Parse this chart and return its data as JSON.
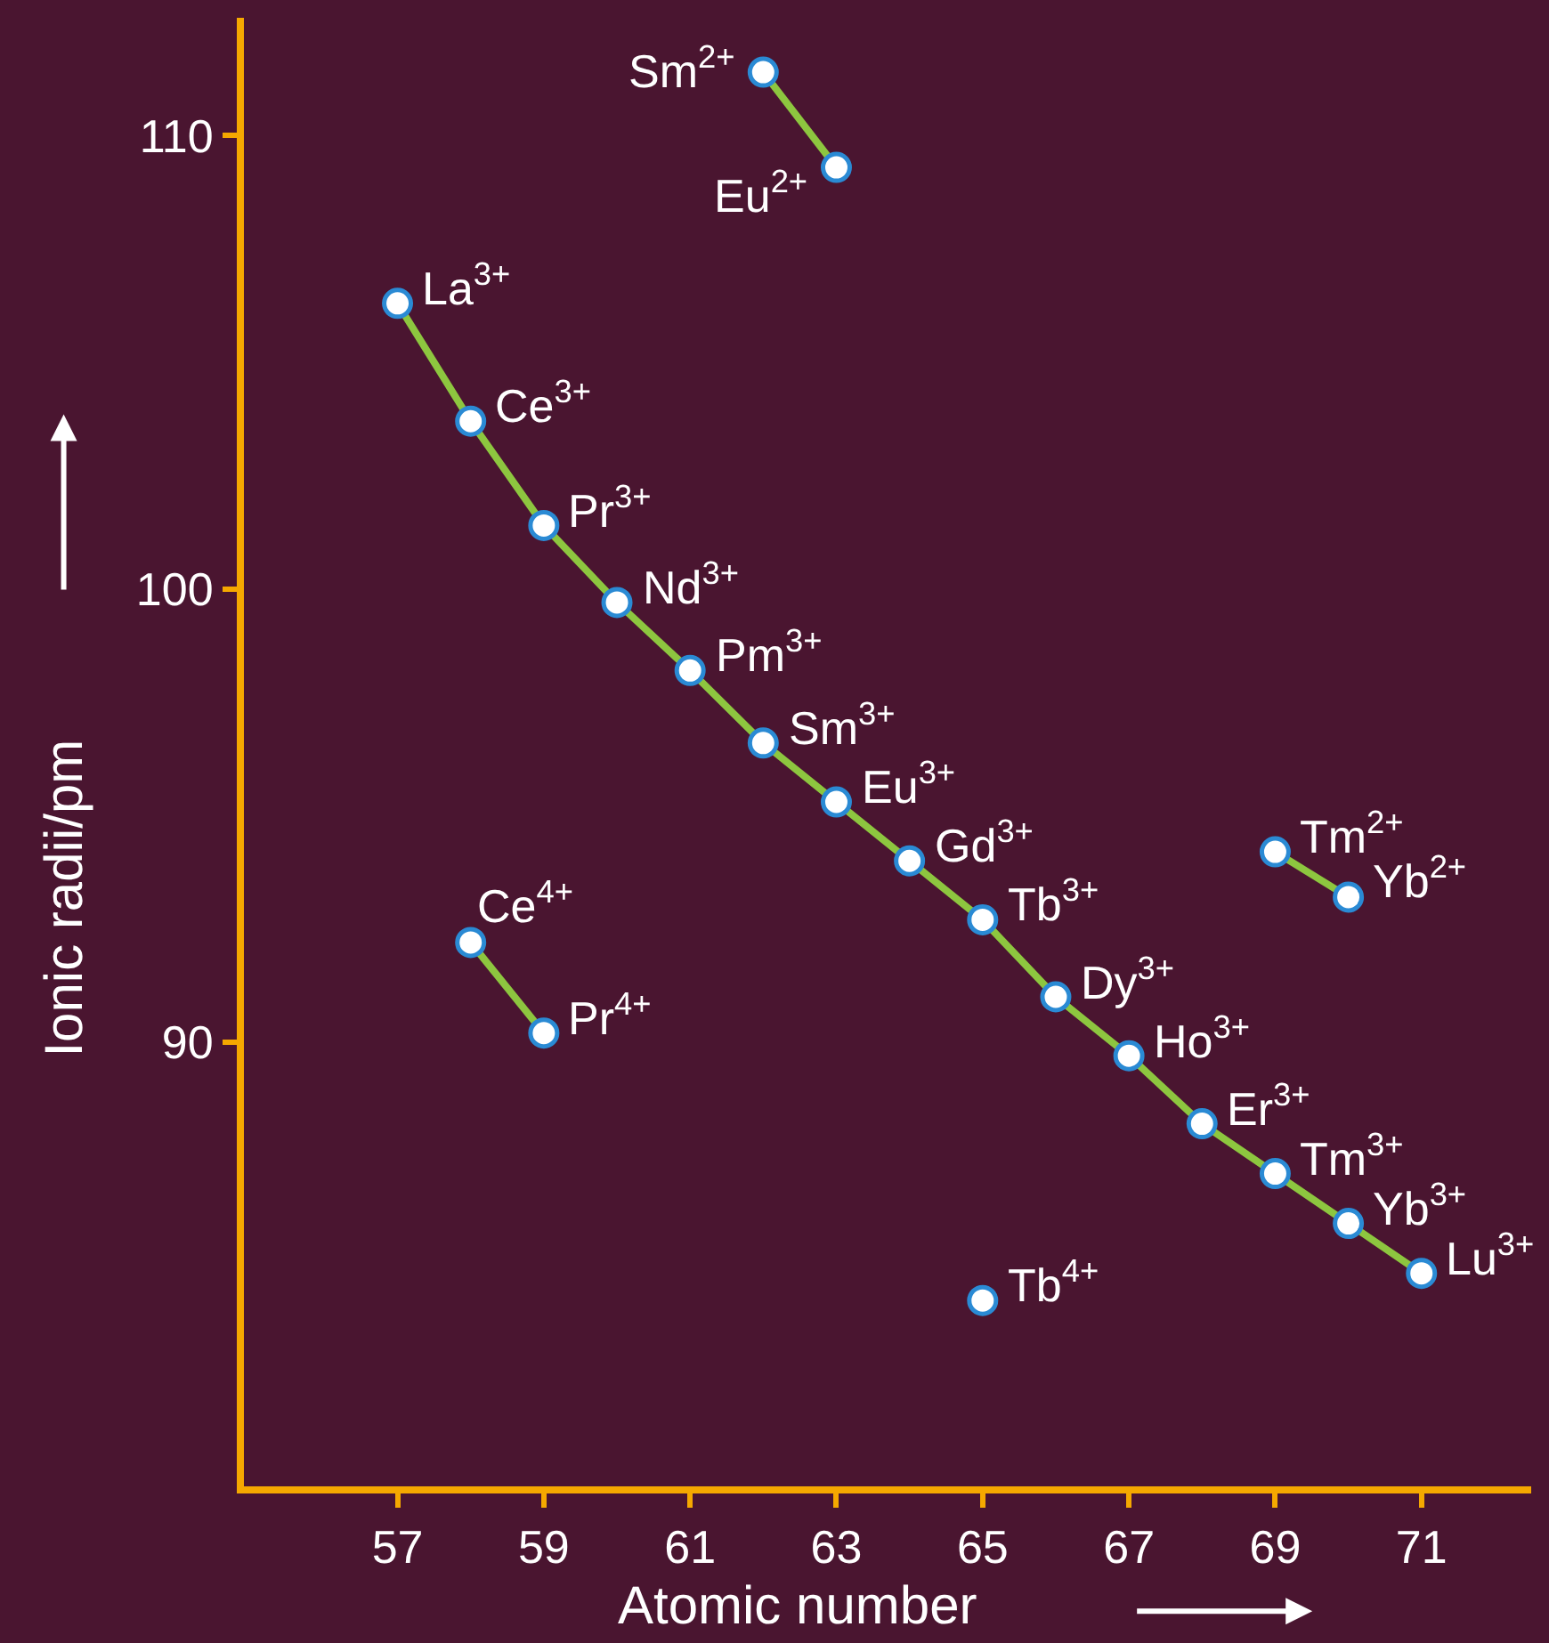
{
  "chart_data": {
    "type": "line",
    "xlabel": "Atomic number",
    "ylabel": "Ionic radii/pm",
    "xlim": [
      54.9,
      72.5
    ],
    "ylim": [
      80.2,
      112.6
    ],
    "xticks": [
      57,
      59,
      61,
      63,
      65,
      67,
      69,
      71
    ],
    "yticks": [
      90,
      100,
      110
    ],
    "grid": false,
    "marker": "circle",
    "line_style": "solid",
    "series": [
      {
        "color": "#8dc63f",
        "x": [
          57,
          58,
          59,
          60,
          61,
          62,
          63,
          64,
          65,
          66,
          67,
          68,
          69,
          70,
          71
        ],
        "values": [
          106.3,
          103.7,
          101.4,
          99.7,
          98.2,
          96.6,
          95.3,
          94.0,
          92.7,
          91.0,
          89.7,
          88.2,
          87.1,
          86.0,
          84.9
        ]
      },
      {
        "color": "#8dc63f",
        "x": [
          62,
          63
        ],
        "values": [
          111.4,
          109.3
        ]
      },
      {
        "color": "#8dc63f",
        "x": [
          58,
          59
        ],
        "values": [
          92.2,
          90.2
        ]
      },
      {
        "color": "#8dc63f",
        "x": [
          69,
          70
        ],
        "values": [
          94.2,
          93.2
        ]
      },
      {
        "type": "scatter",
        "color": "#ffffff",
        "x": [
          65
        ],
        "values": [
          84.3
        ]
      }
    ],
    "annotations": [
      {
        "text": "La$^{3+}$",
        "x": 57,
        "y": 106.3
      },
      {
        "text": "Ce$^{3+}$",
        "x": 58,
        "y": 103.7
      },
      {
        "text": "Pr$^{3+}$",
        "x": 59,
        "y": 101.4
      },
      {
        "text": "Nd$^{3+}$",
        "x": 60,
        "y": 99.7
      },
      {
        "text": "Pm$^{3+}$",
        "x": 61,
        "y": 98.2
      },
      {
        "text": "Sm$^{3+}$",
        "x": 62,
        "y": 96.6
      },
      {
        "text": "Eu$^{3+}$",
        "x": 63,
        "y": 95.3
      },
      {
        "text": "Gd$^{3+}$",
        "x": 64,
        "y": 94.0
      },
      {
        "text": "Tb$^{3+}$",
        "x": 65,
        "y": 92.7
      },
      {
        "text": "Dy$^{3+}$",
        "x": 66,
        "y": 91.0
      },
      {
        "text": "Ho$^{3+}$",
        "x": 67,
        "y": 89.7
      },
      {
        "text": "Er$^{3+}$",
        "x": 68,
        "y": 88.2
      },
      {
        "text": "Tm$^{3+}$",
        "x": 69,
        "y": 87.1
      },
      {
        "text": "Yb$^{3+}$",
        "x": 70,
        "y": 86.0
      },
      {
        "text": "Lu$^{3+}$",
        "x": 71,
        "y": 84.9
      },
      {
        "text": "Sm$^{2+}$",
        "x": 62,
        "y": 111.4
      },
      {
        "text": "Eu$^{2+}$",
        "x": 63,
        "y": 109.3
      },
      {
        "text": "Ce$^{4+}$",
        "x": 58,
        "y": 92.2
      },
      {
        "text": "Pr$^{4+}$",
        "x": 59,
        "y": 90.2
      },
      {
        "text": "Tm$^{2+}$",
        "x": 69,
        "y": 94.2
      },
      {
        "text": "Yb$^{2+}$",
        "x": 70,
        "y": 93.2
      },
      {
        "text": "Tb$^{4+}$",
        "x": 65,
        "y": 84.3
      }
    ]
  }
}
